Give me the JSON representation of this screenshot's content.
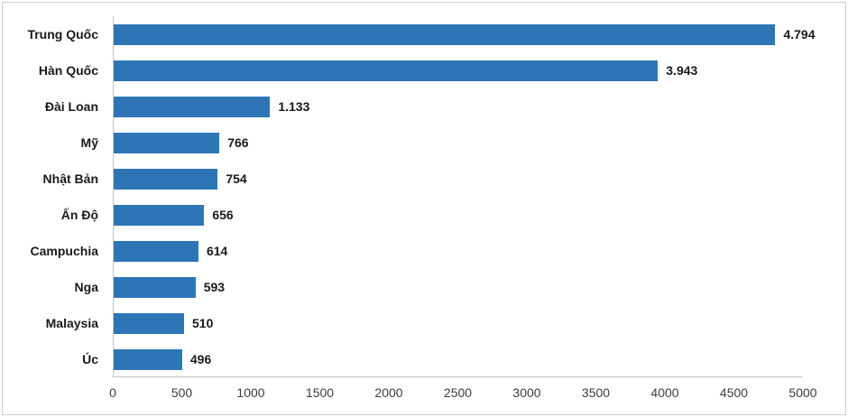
{
  "chart_data": {
    "type": "bar",
    "orientation": "horizontal",
    "title": "",
    "xlabel": "",
    "ylabel": "",
    "categories": [
      "Trung Quốc",
      "Hàn Quốc",
      "Đài Loan",
      "Mỹ",
      "Nhật Bản",
      "Ấn Độ",
      "Campuchia",
      "Nga",
      "Malaysia",
      "Úc"
    ],
    "values": [
      4794,
      3943,
      1133,
      766,
      754,
      656,
      614,
      593,
      510,
      496
    ],
    "value_labels": [
      "4.794",
      "3.943",
      "1.133",
      "766",
      "754",
      "656",
      "614",
      "593",
      "510",
      "496"
    ],
    "x_ticks": [
      0,
      500,
      1000,
      1500,
      2000,
      2500,
      3000,
      3500,
      4000,
      4500,
      5000
    ],
    "x_tick_labels": [
      "0",
      "500",
      "1000",
      "1500",
      "2000",
      "2500",
      "3000",
      "3500",
      "4000",
      "4500",
      "5000"
    ],
    "xlim": [
      0,
      5000
    ],
    "grid": false,
    "legend": false
  },
  "colors": {
    "bar": "#2E75B6",
    "axis_line": "#c6c6c6",
    "label_text": "#1a1a1a",
    "tick_text": "#3d3d3d",
    "frame_border": "#cdcdcd",
    "background": "#ffffff"
  }
}
